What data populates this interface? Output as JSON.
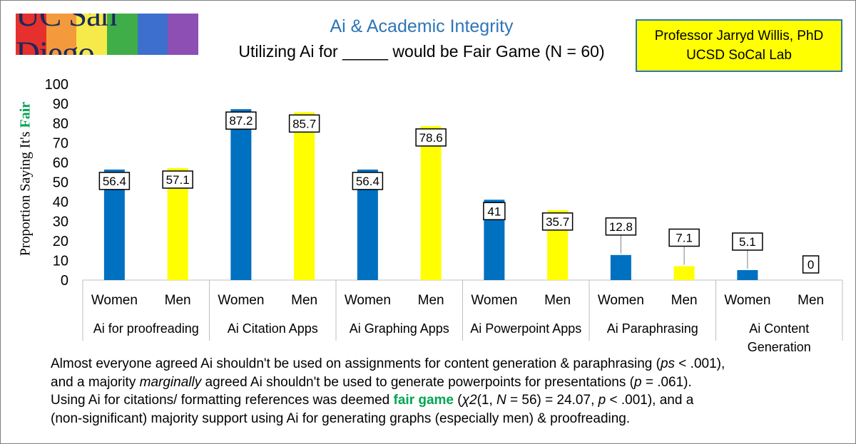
{
  "header": {
    "logo_text": "UC San Diego",
    "credit_line1": "Professor Jarryd Willis, PhD",
    "credit_line2": "UCSD SoCal Lab"
  },
  "chart_data": {
    "type": "bar",
    "title": "Ai & Academic Integrity",
    "subtitle": "Utilizing Ai for _____ would be Fair Game (N = 60)",
    "ylabel_prefix": "Proportion Saying It's ",
    "ylabel_emphasis": "Fair",
    "ylim": [
      0,
      100
    ],
    "yticks": [
      0,
      10,
      20,
      30,
      40,
      50,
      60,
      70,
      80,
      90,
      100
    ],
    "grid": false,
    "legend": "none",
    "categories": [
      {
        "label_lines": [
          "Ai for proofreading"
        ]
      },
      {
        "label_lines": [
          "Ai Citation Apps"
        ]
      },
      {
        "label_lines": [
          "Ai Graphing Apps"
        ]
      },
      {
        "label_lines": [
          "Ai Powerpoint Apps"
        ]
      },
      {
        "label_lines": [
          "Ai Paraphrasing"
        ]
      },
      {
        "label_lines": [
          "Ai Content",
          "Generation"
        ]
      }
    ],
    "series": [
      {
        "name": "Women",
        "color": "#0070c0",
        "values": [
          56.4,
          87.2,
          56.4,
          41,
          12.8,
          5.1
        ]
      },
      {
        "name": "Men",
        "color": "#ffff00",
        "values": [
          57.1,
          85.7,
          78.6,
          35.7,
          7.1,
          0
        ]
      }
    ],
    "data_labels": [
      [
        "56.4",
        "87.2",
        "56.4",
        "41",
        "12.8",
        "5.1"
      ],
      [
        "57.1",
        "85.7",
        "78.6",
        "35.7",
        "7.1",
        "0"
      ]
    ]
  },
  "note": {
    "l1a": "Almost everyone agreed Ai shouldn't be used on assignments for content generation & paraphrasing (",
    "l1ps": "ps",
    "l1b": " < .001),",
    "l2a": "and a majority ",
    "l2i": "marginally",
    "l2b": " agreed Ai shouldn't be used to generate powerpoints for presentations (",
    "l2p": "p",
    "l2c": " = .061).",
    "l3a": "Using Ai for citations/ formatting references was deemed ",
    "l3fg": "fair game",
    "l3b": " (",
    "l3chi": "χ2",
    "l3c": "(1, ",
    "l3n": "N",
    "l3d": " = 56) = 24.07, ",
    "l3p": "p",
    "l3e": " < .001), and a",
    "l4": "(non-significant) majority support using Ai for generating graphs (especially men) & proofreading."
  }
}
